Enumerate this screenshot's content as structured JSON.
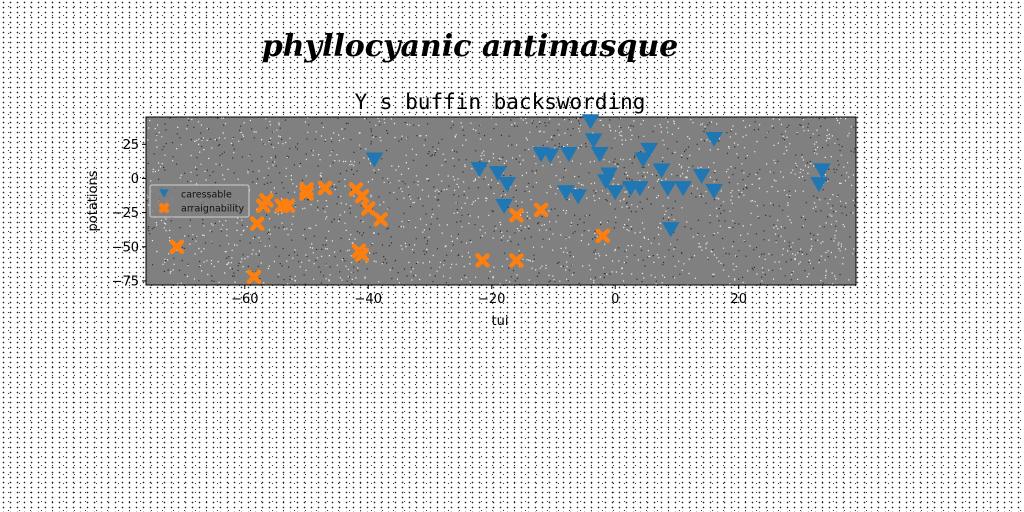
{
  "chart_data": {
    "type": "scatter",
    "suptitle": "phyllocyanic antimasque",
    "title": "Y s buffin backswording",
    "xlabel": "tui",
    "ylabel": "potations",
    "xlim": [
      -76,
      39
    ],
    "ylim": [
      -78,
      45
    ],
    "xticks": [
      -60,
      -40,
      -20,
      0,
      20
    ],
    "yticks": [
      -75,
      -50,
      -25,
      0,
      25
    ],
    "grid": false,
    "legend_position": "center-left",
    "background": "#808080",
    "series": [
      {
        "name": "caressable",
        "marker": "triangle-down",
        "color": "#1f77b4",
        "points": [
          [
            -39,
            14
          ],
          [
            -22,
            7
          ],
          [
            -19,
            4
          ],
          [
            -17.5,
            -4
          ],
          [
            -18,
            -20
          ],
          [
            -12,
            18
          ],
          [
            -10.5,
            17
          ],
          [
            -7.5,
            18
          ],
          [
            -8,
            -10
          ],
          [
            -6,
            -13
          ],
          [
            -4,
            42
          ],
          [
            -3.5,
            28
          ],
          [
            -2.5,
            18
          ],
          [
            -1,
            3
          ],
          [
            -1.5,
            -2
          ],
          [
            0,
            -10
          ],
          [
            2.5,
            -7
          ],
          [
            4,
            -7
          ],
          [
            4.5,
            14
          ],
          [
            5.5,
            21
          ],
          [
            7.5,
            6
          ],
          [
            8.5,
            -7
          ],
          [
            11,
            -7
          ],
          [
            14,
            2
          ],
          [
            16,
            29
          ],
          [
            16,
            -9
          ],
          [
            9,
            -37
          ],
          [
            33.5,
            6
          ],
          [
            33,
            -4
          ]
        ]
      },
      {
        "name": "arraignability",
        "marker": "x",
        "color": "#ff7f0e",
        "points": [
          [
            -71,
            -50
          ],
          [
            -58.5,
            -72
          ],
          [
            -58,
            -33
          ],
          [
            -57,
            -20
          ],
          [
            -56.5,
            -16
          ],
          [
            -54,
            -20
          ],
          [
            -53,
            -20
          ],
          [
            -50,
            -8
          ],
          [
            -50,
            -11
          ],
          [
            -47,
            -7
          ],
          [
            -42,
            -8
          ],
          [
            -41,
            -13
          ],
          [
            -40,
            -22
          ],
          [
            -38,
            -30
          ],
          [
            -41.5,
            -53
          ],
          [
            -41,
            -56
          ],
          [
            -21.5,
            -60
          ],
          [
            -16,
            -27
          ],
          [
            -16,
            -60
          ],
          [
            -12,
            -23
          ],
          [
            -2,
            -42
          ]
        ]
      }
    ]
  }
}
